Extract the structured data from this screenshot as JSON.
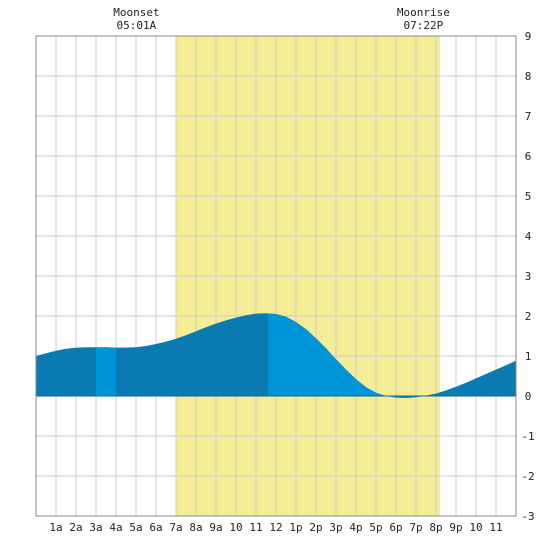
{
  "chart_data": {
    "type": "area",
    "title": "",
    "xlabel": "",
    "ylabel": "",
    "x_ticks": [
      "1a",
      "2a",
      "3a",
      "4a",
      "5a",
      "6a",
      "7a",
      "8a",
      "9a",
      "10",
      "11",
      "12",
      "1p",
      "2p",
      "3p",
      "4p",
      "5p",
      "6p",
      "7p",
      "8p",
      "9p",
      "10",
      "11"
    ],
    "y_ticks": [
      "-3",
      "-2",
      "-1",
      "0",
      "1",
      "2",
      "3",
      "4",
      "5",
      "6",
      "7",
      "8",
      "9"
    ],
    "ylim": [
      -3,
      9
    ],
    "xlim_hours": [
      0,
      24
    ],
    "grid": true,
    "daylight_hours": [
      7.0,
      20.2
    ],
    "moon_events": [
      {
        "label": "Moonset",
        "time": "05:01A",
        "hour": 5.02
      },
      {
        "label": "Moonrise",
        "time": "07:22P",
        "hour": 19.37
      }
    ],
    "series": [
      {
        "x": [
          0,
          0.5,
          1,
          1.5,
          2,
          2.5,
          3,
          3.5,
          4,
          4.5,
          5,
          5.5,
          6,
          6.5,
          7,
          7.5,
          8,
          8.5,
          9,
          9.5,
          10,
          10.5,
          11,
          11.5,
          12,
          12.5,
          13,
          13.5,
          14,
          14.5,
          15,
          15.5,
          16,
          16.5,
          17,
          17.5,
          18,
          18.5,
          19,
          19.5,
          20,
          20.5,
          21,
          21.5,
          22,
          22.5,
          23,
          23.5,
          24
        ],
        "values": [
          1.0,
          1.07,
          1.13,
          1.18,
          1.21,
          1.22,
          1.22,
          1.22,
          1.21,
          1.21,
          1.22,
          1.25,
          1.3,
          1.36,
          1.43,
          1.52,
          1.62,
          1.72,
          1.81,
          1.89,
          1.96,
          2.02,
          2.06,
          2.07,
          2.05,
          1.98,
          1.85,
          1.67,
          1.44,
          1.19,
          0.92,
          0.66,
          0.42,
          0.22,
          0.08,
          0.0,
          -0.04,
          -0.05,
          -0.03,
          0.01,
          0.06,
          0.14,
          0.23,
          0.33,
          0.44,
          0.55,
          0.66,
          0.77,
          0.88
        ]
      }
    ],
    "colors": {
      "daylight": "#f5ec96",
      "tide_dark": "#0a7ab2",
      "tide_light": "#0095d9",
      "grid": "#cccccc",
      "border": "#888888"
    },
    "highlight_bands_hours": [
      [
        3,
        4
      ],
      [
        11.6,
        17.95
      ]
    ]
  }
}
